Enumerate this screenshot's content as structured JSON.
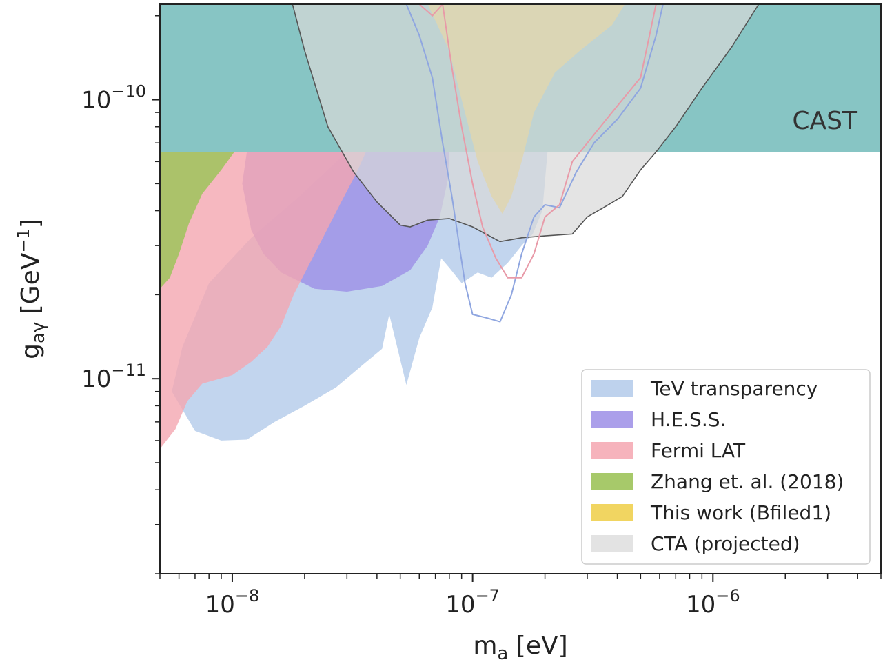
{
  "chart_data": {
    "type": "area",
    "xlabel": {
      "main": "m",
      "sub": "a",
      "unit": " [eV]"
    },
    "ylabel": {
      "main": "g",
      "sub": "aγ",
      "unit": " [GeV",
      "unit_sup": "−1",
      "unit_end": "]"
    },
    "x_scale": "log",
    "y_scale": "log",
    "xlim": [
      5e-09,
      5e-06
    ],
    "ylim": [
      2e-12,
      2.2e-10
    ],
    "x_ticks": [
      {
        "value": 1e-08,
        "base": "10",
        "exp": "−8"
      },
      {
        "value": 1e-07,
        "base": "10",
        "exp": "−7"
      },
      {
        "value": 1e-06,
        "base": "10",
        "exp": "−6"
      }
    ],
    "y_ticks": [
      {
        "value": 1e-11,
        "base": "10",
        "exp": "−11"
      },
      {
        "value": 1e-10,
        "base": "10",
        "exp": "−10"
      }
    ],
    "grid": false,
    "legend_position": "bottom-right",
    "annotation": "CAST",
    "series": [
      {
        "key": "cast",
        "kind": "region",
        "color": "#5fb1b0",
        "opacity": 0.75,
        "polygon": [
          [
            5e-09,
            6.5e-11
          ],
          [
            5e-06,
            6.5e-11
          ],
          [
            5e-06,
            2.2e-10
          ],
          [
            5e-09,
            2.2e-10
          ]
        ]
      },
      {
        "key": "tev",
        "name": "TeV transparency",
        "kind": "region",
        "color": "#aec7e8",
        "opacity": 0.75,
        "polygon": [
          [
            7e-09,
            6.5e-12
          ],
          [
            9e-09,
            6e-12
          ],
          [
            1.15e-08,
            6.05e-12
          ],
          [
            1.5e-08,
            7e-12
          ],
          [
            2e-08,
            8e-12
          ],
          [
            2.7e-08,
            9.3e-12
          ],
          [
            3.4e-08,
            1.1e-11
          ],
          [
            4.2e-08,
            1.28e-11
          ],
          [
            4.5e-08,
            1.7e-11
          ],
          [
            5.3e-08,
            9.5e-12
          ],
          [
            6e-08,
            1.4e-11
          ],
          [
            6.8e-08,
            1.8e-11
          ],
          [
            7.4e-08,
            2.7e-11
          ],
          [
            8e-08,
            2.5e-11
          ],
          [
            9e-08,
            2.2e-11
          ],
          [
            1.05e-07,
            2.4e-11
          ],
          [
            1.2e-07,
            2.3e-11
          ],
          [
            1.4e-07,
            2.6e-11
          ],
          [
            1.6e-07,
            3e-11
          ],
          [
            1.78e-07,
            3.3e-11
          ],
          [
            1.95e-07,
            4e-11
          ],
          [
            2.05e-07,
            6.5e-11
          ],
          [
            3e-08,
            6.5e-11
          ],
          [
            1.9e-08,
            4.5e-11
          ],
          [
            1.2e-08,
            3.2e-11
          ],
          [
            8e-09,
            2.2e-11
          ],
          [
            6.2e-09,
            1.3e-11
          ],
          [
            5.6e-09,
            9e-12
          ]
        ]
      },
      {
        "key": "hess",
        "name": "H.E.S.S.",
        "kind": "region",
        "color": "#9c8ee6",
        "opacity": 0.8,
        "polygon": [
          [
            1.6e-08,
            2.4e-11
          ],
          [
            2.2e-08,
            2.1e-11
          ],
          [
            3e-08,
            2.05e-11
          ],
          [
            4.2e-08,
            2.15e-11
          ],
          [
            5.5e-08,
            2.45e-11
          ],
          [
            6.5e-08,
            3e-11
          ],
          [
            7.3e-08,
            3.8e-11
          ],
          [
            7.9e-08,
            5.2e-11
          ],
          [
            8e-08,
            6.5e-11
          ],
          [
            1.15e-08,
            6.5e-11
          ],
          [
            1.1e-08,
            5e-11
          ],
          [
            1.2e-08,
            3.4e-11
          ],
          [
            1.35e-08,
            2.8e-11
          ]
        ]
      },
      {
        "key": "fermi",
        "name": "Fermi LAT",
        "kind": "region",
        "color": "#f4a6b0",
        "opacity": 0.8,
        "polygon": [
          [
            5e-09,
            5.6e-12
          ],
          [
            5.8e-09,
            6.6e-12
          ],
          [
            6.5e-09,
            8.3e-12
          ],
          [
            7.5e-09,
            9.6e-12
          ],
          [
            1e-08,
            1.03e-11
          ],
          [
            1.2e-08,
            1.15e-11
          ],
          [
            1.4e-08,
            1.3e-11
          ],
          [
            1.6e-08,
            1.55e-11
          ],
          [
            1.8e-08,
            2e-11
          ],
          [
            2.2e-08,
            2.8e-11
          ],
          [
            2.8e-08,
            4.2e-11
          ],
          [
            3.3e-08,
            5.5e-11
          ],
          [
            3.6e-08,
            6.5e-11
          ],
          [
            5e-09,
            6.5e-11
          ]
        ]
      },
      {
        "key": "zhang",
        "name": "Zhang et. al. (2018)",
        "kind": "region",
        "color": "#9dc35a",
        "opacity": 0.85,
        "polygon": [
          [
            5e-09,
            2.1e-11
          ],
          [
            5.5e-09,
            2.3e-11
          ],
          [
            6e-09,
            2.8e-11
          ],
          [
            6.6e-09,
            3.6e-11
          ],
          [
            7.5e-09,
            4.6e-11
          ],
          [
            9e-09,
            5.6e-11
          ],
          [
            1.02e-08,
            6.5e-11
          ],
          [
            5e-09,
            6.5e-11
          ]
        ]
      },
      {
        "key": "thiswork",
        "name": "This work (Bfiled1)",
        "kind": "region",
        "color": "#f0d050",
        "opacity": 0.85,
        "polygon": [
          [
            6.5e-08,
            2.2e-10
          ],
          [
            4.3e-07,
            2.2e-10
          ],
          [
            3.8e-07,
            1.85e-10
          ],
          [
            2.8e-07,
            1.5e-10
          ],
          [
            2.2e-07,
            1.25e-10
          ],
          [
            1.8e-07,
            9e-11
          ],
          [
            1.6e-07,
            6e-11
          ],
          [
            1.45e-07,
            4.5e-11
          ],
          [
            1.33e-07,
            3.9e-11
          ],
          [
            1.2e-07,
            4.5e-11
          ],
          [
            1.05e-07,
            6e-11
          ],
          [
            9e-08,
            1e-10
          ],
          [
            8e-08,
            1.5e-10
          ]
        ]
      },
      {
        "key": "cta",
        "name": "CTA (projected)",
        "kind": "region",
        "color": "#d9d9d9",
        "opacity": 0.7,
        "outline": "#555555",
        "polygon": [
          [
            1.78e-08,
            2.2e-10
          ],
          [
            2e-08,
            1.5e-10
          ],
          [
            2.5e-08,
            8e-11
          ],
          [
            3.2e-08,
            5.5e-11
          ],
          [
            4e-08,
            4.3e-11
          ],
          [
            5e-08,
            3.55e-11
          ],
          [
            5.5e-08,
            3.5e-11
          ],
          [
            6.5e-08,
            3.7e-11
          ],
          [
            8e-08,
            3.75e-11
          ],
          [
            1e-07,
            3.5e-11
          ],
          [
            1.3e-07,
            3.1e-11
          ],
          [
            1.6e-07,
            3.2e-11
          ],
          [
            2e-07,
            3.25e-11
          ],
          [
            2.6e-07,
            3.3e-11
          ],
          [
            3e-07,
            3.8e-11
          ],
          [
            3.5e-07,
            4.1e-11
          ],
          [
            4.2e-07,
            4.5e-11
          ],
          [
            5e-07,
            5.6e-11
          ],
          [
            5.8e-07,
            6.5e-11
          ],
          [
            7e-07,
            8e-11
          ],
          [
            9e-07,
            1.1e-10
          ],
          [
            1.2e-06,
            1.55e-10
          ],
          [
            1.55e-06,
            2.2e-10
          ]
        ]
      },
      {
        "key": "tev_curve",
        "kind": "curve",
        "color": "#8fa6e0",
        "points": [
          [
            5.3e-08,
            2.2e-10
          ],
          [
            6e-08,
            1.7e-10
          ],
          [
            6.8e-08,
            1.2e-10
          ],
          [
            7.5e-08,
            7e-11
          ],
          [
            8.2e-08,
            4.5e-11
          ],
          [
            8.8e-08,
            3e-11
          ],
          [
            9.3e-08,
            2.2e-11
          ],
          [
            1e-07,
            1.7e-11
          ],
          [
            1.15e-07,
            1.65e-11
          ],
          [
            1.3e-07,
            1.6e-11
          ],
          [
            1.45e-07,
            2e-11
          ],
          [
            1.6e-07,
            2.8e-11
          ],
          [
            1.8e-07,
            3.8e-11
          ],
          [
            2e-07,
            4.2e-11
          ],
          [
            2.3e-07,
            4.1e-11
          ],
          [
            2.7e-07,
            5.5e-11
          ],
          [
            3.2e-07,
            7e-11
          ],
          [
            4e-07,
            8.5e-11
          ],
          [
            5e-07,
            1.1e-10
          ],
          [
            5.8e-07,
            1.7e-10
          ],
          [
            6.2e-07,
            2.2e-10
          ]
        ]
      },
      {
        "key": "fermi_curve",
        "kind": "curve",
        "color": "#e89aa8",
        "points": [
          [
            6e-08,
            2.2e-10
          ],
          [
            6.8e-08,
            2e-10
          ],
          [
            7.5e-08,
            2.2e-10
          ],
          [
            8.2e-08,
            1.3e-10
          ],
          [
            9e-08,
            8e-11
          ],
          [
            1e-07,
            5e-11
          ],
          [
            1.1e-07,
            3.5e-11
          ],
          [
            1.25e-07,
            2.7e-11
          ],
          [
            1.4e-07,
            2.3e-11
          ],
          [
            1.6e-07,
            2.3e-11
          ],
          [
            1.8e-07,
            2.8e-11
          ],
          [
            2e-07,
            3.8e-11
          ],
          [
            2.3e-07,
            4.2e-11
          ],
          [
            2.6e-07,
            6e-11
          ],
          [
            3.2e-07,
            7.5e-11
          ],
          [
            4e-07,
            9.5e-11
          ],
          [
            5e-07,
            1.2e-10
          ],
          [
            5.8e-07,
            2.2e-10
          ]
        ]
      }
    ]
  }
}
